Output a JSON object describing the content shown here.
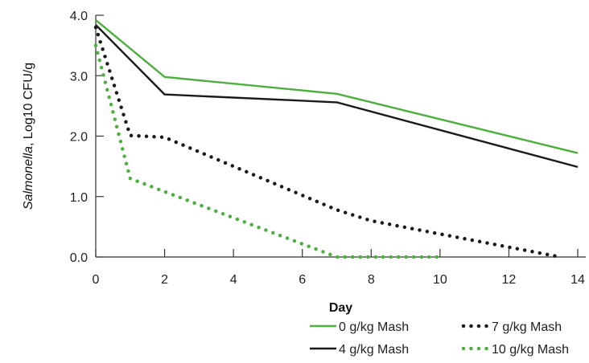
{
  "chart_data": {
    "type": "line",
    "xlabel": "Day",
    "ylabel_italic": "Salmonella",
    "ylabel_rest": ", Log10 CFU/g",
    "xlim": [
      0,
      14
    ],
    "ylim": [
      0,
      4
    ],
    "xticks": [
      0,
      2,
      4,
      6,
      8,
      10,
      12,
      14
    ],
    "yticks": [
      {
        "value": 0,
        "label": "0.0"
      },
      {
        "value": 1,
        "label": "1.0"
      },
      {
        "value": 2,
        "label": "2.0"
      },
      {
        "value": 3,
        "label": "3.0"
      },
      {
        "value": 4,
        "label": "4.0"
      }
    ],
    "grid": false,
    "legend_position": "bottom-right",
    "series": [
      {
        "name": "0 g/kg Mash",
        "color": "#4caf3e",
        "style": "solid",
        "x": [
          0,
          2,
          7,
          14
        ],
        "y": [
          3.92,
          2.98,
          2.7,
          1.72
        ]
      },
      {
        "name": "4 g/kg Mash",
        "color": "#1a1a1a",
        "style": "solid",
        "x": [
          0,
          2,
          7,
          14
        ],
        "y": [
          3.84,
          2.69,
          2.56,
          1.49
        ]
      },
      {
        "name": "7 g/kg Mash",
        "color": "#1a1a1a",
        "style": "dotted",
        "x": [
          0,
          1,
          2,
          7,
          8,
          10,
          13.5
        ],
        "y": [
          3.8,
          2.01,
          1.98,
          0.78,
          0.6,
          0.38,
          0.0
        ]
      },
      {
        "name": "10 g/kg Mash",
        "color": "#4caf3e",
        "style": "dotted",
        "x": [
          0,
          1,
          2,
          7,
          8,
          10
        ],
        "y": [
          3.5,
          1.3,
          1.08,
          0.0,
          0.0,
          0.0
        ]
      }
    ]
  }
}
